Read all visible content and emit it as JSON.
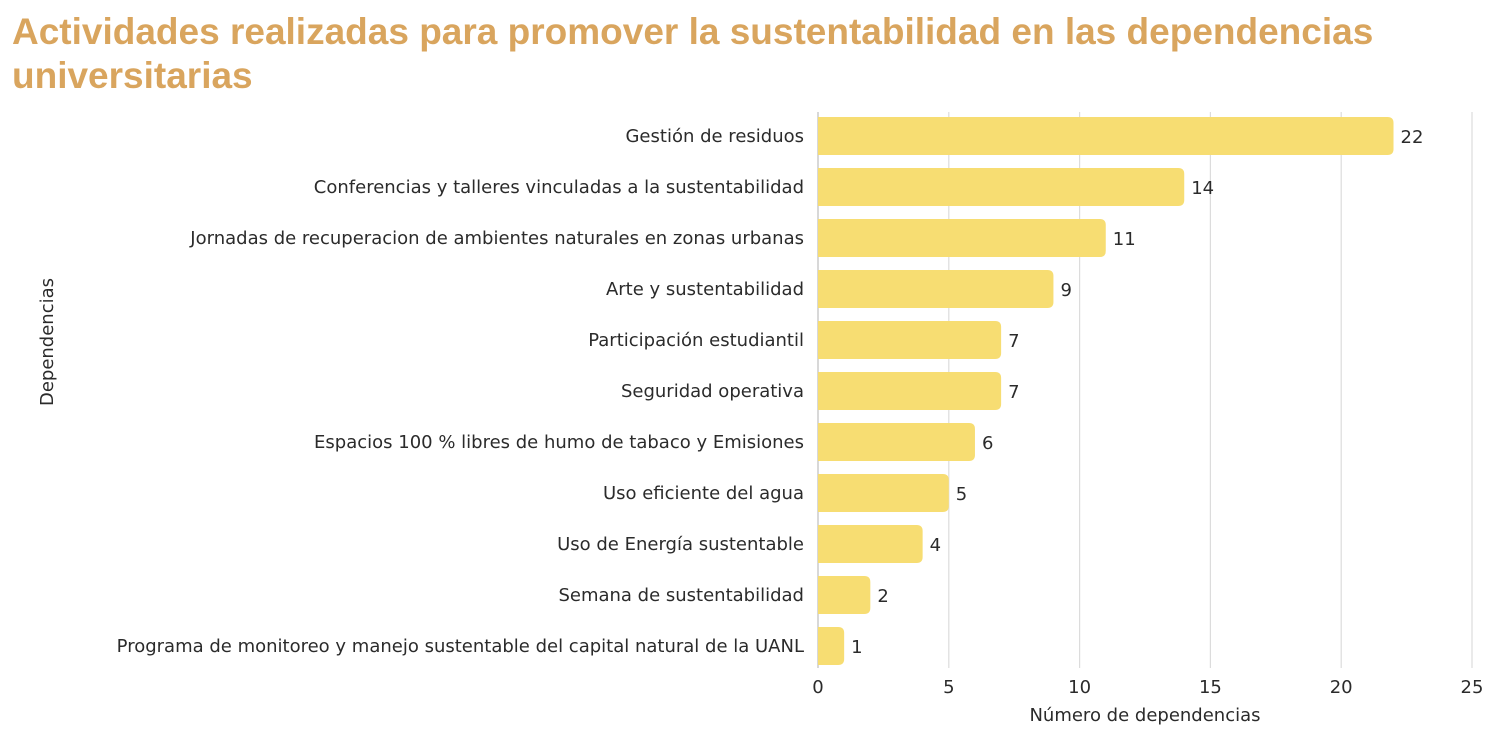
{
  "chart_data": {
    "type": "bar",
    "orientation": "horizontal",
    "title": "Actividades realizadas para promover la sustentabilidad en las dependencias universitarias",
    "xlabel": "Número de dependencias",
    "ylabel": "Dependencias",
    "xlim": [
      0,
      25
    ],
    "xticks": [
      0,
      5,
      10,
      15,
      20,
      25
    ],
    "grid": "vertical",
    "legend": "none",
    "bar_color": "#F7DD72",
    "title_color": "#D9A55E",
    "categories": [
      "Gestión de residuos",
      "Conferencias y talleres vinculadas a la sustentabilidad",
      "Jornadas de recuperacion de ambientes naturales en zonas urbanas",
      "Arte y sustentabilidad",
      "Participación estudiantil",
      "Seguridad operativa",
      "Espacios 100 % libres de humo de tabaco y Emisiones",
      "Uso eficiente del agua",
      "Uso de Energía sustentable",
      "Semana de sustentabilidad",
      "Programa de monitoreo y manejo sustentable del capital natural de la UANL"
    ],
    "values": [
      22,
      14,
      11,
      9,
      7,
      7,
      6,
      5,
      4,
      2,
      1
    ]
  }
}
